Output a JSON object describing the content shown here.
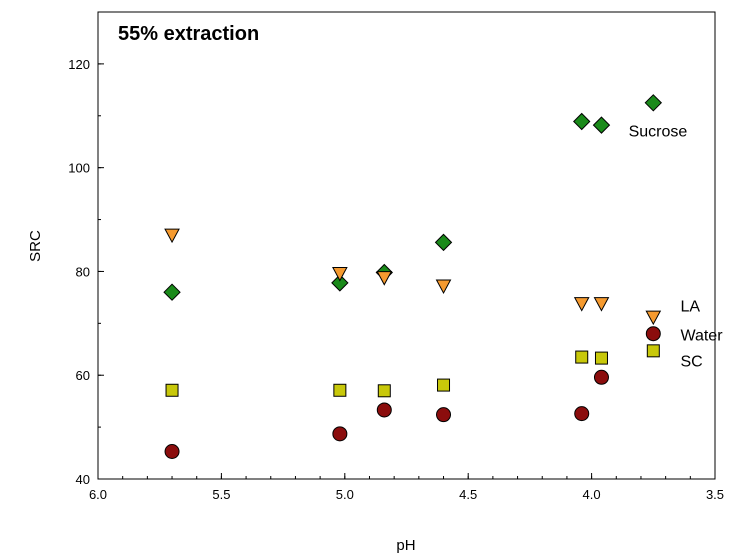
{
  "chart_data": {
    "type": "scatter",
    "title": "55% extraction",
    "xlabel": "pH",
    "ylabel": "SRC",
    "xlim": [
      6.0,
      3.5
    ],
    "ylim": [
      40,
      130
    ],
    "x_reversed": true,
    "xticks": [
      "6.0",
      "5.5",
      "5.0",
      "4.5",
      "4.0",
      "3.5"
    ],
    "yticks": [
      "40",
      "60",
      "80",
      "100",
      "120"
    ],
    "grid": false,
    "legend": "none",
    "series": [
      {
        "marker": "diamond",
        "color": "#1a8a1a",
        "points": [
          {
            "x": 5.7,
            "y": 76.0
          },
          {
            "x": 5.02,
            "y": 77.8
          },
          {
            "x": 4.84,
            "y": 79.8
          },
          {
            "x": 4.6,
            "y": 85.6
          },
          {
            "x": 4.04,
            "y": 108.9
          },
          {
            "x": 3.96,
            "y": 108.2
          },
          {
            "x": 3.75,
            "y": 112.5
          }
        ]
      },
      {
        "marker": "triangle-down",
        "color": "#f59a2f",
        "points": [
          {
            "x": 5.7,
            "y": 87.0
          },
          {
            "x": 5.02,
            "y": 79.6
          },
          {
            "x": 4.84,
            "y": 78.8
          },
          {
            "x": 4.6,
            "y": 77.2
          },
          {
            "x": 4.04,
            "y": 73.8
          },
          {
            "x": 3.96,
            "y": 73.8
          },
          {
            "x": 3.75,
            "y": 71.2
          }
        ]
      },
      {
        "marker": "circle",
        "color": "#8b0d0d",
        "points": [
          {
            "x": 5.7,
            "y": 45.3
          },
          {
            "x": 5.02,
            "y": 48.7
          },
          {
            "x": 4.84,
            "y": 53.3
          },
          {
            "x": 4.6,
            "y": 52.4
          },
          {
            "x": 4.04,
            "y": 52.6
          },
          {
            "x": 3.96,
            "y": 59.6
          },
          {
            "x": 3.75,
            "y": 68.0
          }
        ]
      },
      {
        "marker": "square",
        "color": "#c8c80a",
        "points": [
          {
            "x": 5.7,
            "y": 57.1
          },
          {
            "x": 5.02,
            "y": 57.1
          },
          {
            "x": 4.84,
            "y": 57.0
          },
          {
            "x": 4.6,
            "y": 58.1
          },
          {
            "x": 4.04,
            "y": 63.5
          },
          {
            "x": 3.96,
            "y": 63.3
          },
          {
            "x": 3.75,
            "y": 64.7
          }
        ]
      }
    ],
    "annotations": [
      {
        "text": "Sucrose",
        "x": 3.85,
        "y": 107.2
      },
      {
        "text": "LA",
        "x": 3.64,
        "y": 73.4
      },
      {
        "text": "Water",
        "x": 3.64,
        "y": 67.8
      },
      {
        "text": "SC",
        "x": 3.64,
        "y": 62.8
      }
    ]
  }
}
